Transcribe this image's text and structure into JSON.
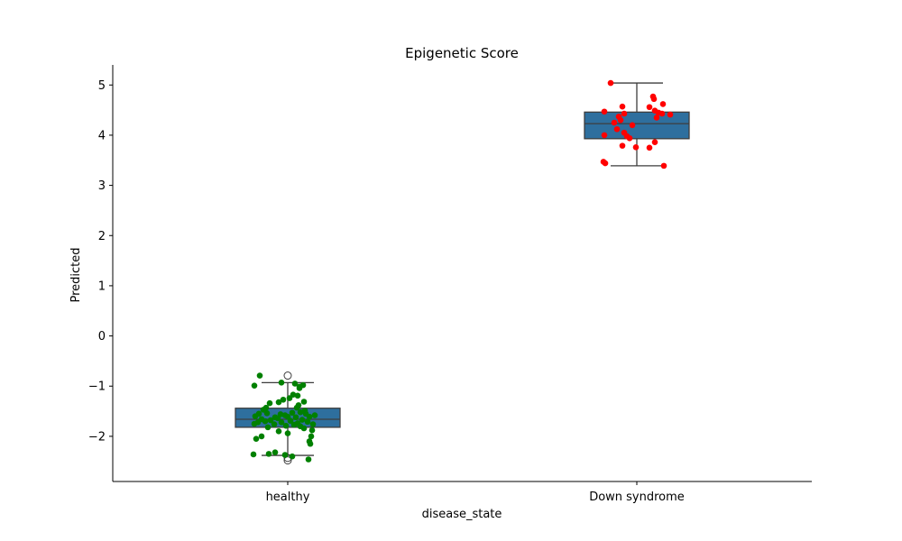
{
  "chart_data": {
    "type": "box",
    "title": "Epigenetic Score",
    "xlabel": "disease_state",
    "ylabel": "Predicted",
    "categories": [
      "healthy",
      "Down syndrome"
    ],
    "ylim": [
      -2.9,
      5.4
    ],
    "yticks": [
      -2,
      -1,
      0,
      1,
      2,
      3,
      4,
      5
    ],
    "ytick_labels": [
      "−2",
      "−1",
      "0",
      "1",
      "2",
      "3",
      "4",
      "5"
    ],
    "grid": false,
    "box_color": "#2e6f9e",
    "box_edge_color": "#3d3d3d",
    "boxes": [
      {
        "category": "healthy",
        "q1": -1.82,
        "median": -1.66,
        "q3": -1.44,
        "whisker_low": -2.38,
        "whisker_high": -0.93,
        "outliers": [
          -0.79,
          -2.43,
          -2.48
        ]
      },
      {
        "category": "Down syndrome",
        "q1": 3.93,
        "median": 4.23,
        "q3": 4.46,
        "whisker_low": 3.39,
        "whisker_high": 5.04,
        "outliers": []
      }
    ],
    "points": [
      {
        "category": "healthy",
        "color": "#008000",
        "values": [
          [
            -0.31,
            -0.79
          ],
          [
            -0.37,
            -0.99
          ],
          [
            -0.07,
            -0.93
          ],
          [
            0.08,
            -0.95
          ],
          [
            0.13,
            -1.01
          ],
          [
            0.17,
            -0.98
          ],
          [
            0.06,
            -1.17
          ],
          [
            0.13,
            -1.04
          ],
          [
            0.11,
            -1.19
          ],
          [
            0.02,
            -1.24
          ],
          [
            -0.05,
            -1.27
          ],
          [
            0.18,
            -1.31
          ],
          [
            0.12,
            -1.38
          ],
          [
            -0.2,
            -1.34
          ],
          [
            -0.1,
            -1.32
          ],
          [
            -0.24,
            -1.43
          ],
          [
            -0.27,
            -1.47
          ],
          [
            0.1,
            -1.43
          ],
          [
            0.19,
            -1.49
          ],
          [
            0.14,
            -1.52
          ],
          [
            -0.32,
            -1.55
          ],
          [
            -0.23,
            -1.54
          ],
          [
            -0.08,
            -1.56
          ],
          [
            -0.03,
            -1.58
          ],
          [
            0.05,
            -1.53
          ],
          [
            0.2,
            -1.55
          ],
          [
            0.3,
            -1.58
          ],
          [
            -0.36,
            -1.6
          ],
          [
            -0.14,
            -1.62
          ],
          [
            0.0,
            -1.61
          ],
          [
            0.09,
            -1.62
          ],
          [
            0.24,
            -1.61
          ],
          [
            -0.29,
            -1.66
          ],
          [
            -0.19,
            -1.68
          ],
          [
            -0.11,
            -1.64
          ],
          [
            0.03,
            -1.69
          ],
          [
            0.16,
            -1.67
          ],
          [
            -0.33,
            -1.72
          ],
          [
            -0.25,
            -1.7
          ],
          [
            -0.07,
            -1.72
          ],
          [
            0.11,
            -1.74
          ],
          [
            0.22,
            -1.71
          ],
          [
            -0.37,
            -1.75
          ],
          [
            -0.15,
            -1.76
          ],
          [
            -0.02,
            -1.79
          ],
          [
            0.07,
            -1.77
          ],
          [
            0.14,
            -1.8
          ],
          [
            0.28,
            -1.76
          ],
          [
            -0.22,
            -1.82
          ],
          [
            0.18,
            -1.84
          ],
          [
            0.27,
            -1.88
          ],
          [
            -0.1,
            -1.9
          ],
          [
            0.0,
            -1.94
          ],
          [
            0.26,
            -2.0
          ],
          [
            -0.29,
            -2.0
          ],
          [
            -0.35,
            -2.05
          ],
          [
            0.24,
            -2.1
          ],
          [
            0.25,
            -2.15
          ],
          [
            -0.38,
            -2.36
          ],
          [
            -0.21,
            -2.35
          ],
          [
            -0.14,
            -2.32
          ],
          [
            -0.03,
            -2.37
          ],
          [
            0.05,
            -2.4
          ],
          [
            0.23,
            -2.46
          ]
        ]
      },
      {
        "category": "Down syndrome",
        "color": "#ff0000",
        "values": [
          [
            -0.29,
            5.04
          ],
          [
            0.18,
            4.77
          ],
          [
            0.19,
            4.72
          ],
          [
            -0.16,
            4.57
          ],
          [
            0.14,
            4.56
          ],
          [
            0.29,
            4.62
          ],
          [
            -0.36,
            4.47
          ],
          [
            0.2,
            4.49
          ],
          [
            0.24,
            4.45
          ],
          [
            0.37,
            4.41
          ],
          [
            -0.14,
            4.43
          ],
          [
            0.28,
            4.43
          ],
          [
            -0.2,
            4.37
          ],
          [
            0.22,
            4.35
          ],
          [
            -0.25,
            4.25
          ],
          [
            -0.18,
            4.3
          ],
          [
            -0.05,
            4.2
          ],
          [
            -0.22,
            4.12
          ],
          [
            -0.14,
            4.05
          ],
          [
            -0.11,
            3.98
          ],
          [
            -0.36,
            4.0
          ],
          [
            -0.08,
            3.94
          ],
          [
            -0.16,
            3.79
          ],
          [
            -0.01,
            3.76
          ],
          [
            0.2,
            3.86
          ],
          [
            0.14,
            3.75
          ],
          [
            -0.37,
            3.47
          ],
          [
            -0.35,
            3.44
          ],
          [
            0.3,
            3.39
          ]
        ]
      }
    ]
  }
}
